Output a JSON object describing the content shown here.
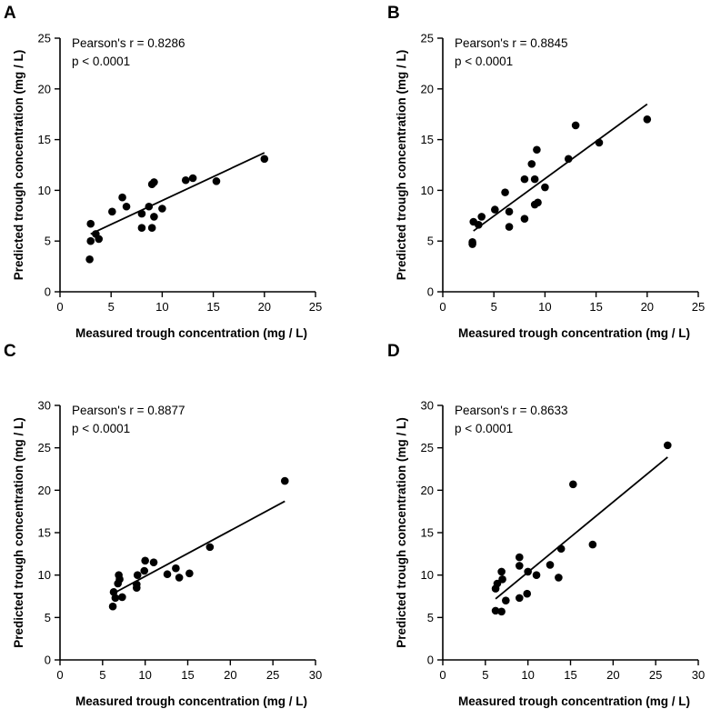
{
  "chart_data": [
    {
      "type": "scatter",
      "panel": "A",
      "xlabel": "Measured trough concentration (mg / L)",
      "ylabel": "Predicted trough concentration (mg / L)",
      "xlim": [
        0,
        25
      ],
      "ylim": [
        0,
        25
      ],
      "xticks": [
        0,
        5,
        10,
        15,
        20,
        25
      ],
      "yticks": [
        0,
        5,
        10,
        15,
        20,
        25
      ],
      "annotation": [
        "Pearson's r = 0.8286",
        "p < 0.0001"
      ],
      "points": [
        [
          2.9,
          3.2
        ],
        [
          3.0,
          5.0
        ],
        [
          3.0,
          6.7
        ],
        [
          3.5,
          5.7
        ],
        [
          3.8,
          5.2
        ],
        [
          5.1,
          7.9
        ],
        [
          6.1,
          9.3
        ],
        [
          6.5,
          8.4
        ],
        [
          8.0,
          6.3
        ],
        [
          8.0,
          7.7
        ],
        [
          8.7,
          8.4
        ],
        [
          9.0,
          6.3
        ],
        [
          9.2,
          7.4
        ],
        [
          9.0,
          10.6
        ],
        [
          9.2,
          10.8
        ],
        [
          10.0,
          8.2
        ],
        [
          12.3,
          11.0
        ],
        [
          13.0,
          11.2
        ],
        [
          15.3,
          10.9
        ],
        [
          20.0,
          13.1
        ]
      ],
      "fit": [
        [
          3.0,
          5.7
        ],
        [
          20.0,
          13.7
        ]
      ]
    },
    {
      "type": "scatter",
      "panel": "B",
      "xlabel": "Measured trough concentration (mg / L)",
      "ylabel": "Predicted trough concentration (mg / L)",
      "xlim": [
        0,
        25
      ],
      "ylim": [
        0,
        25
      ],
      "xticks": [
        0,
        5,
        10,
        15,
        20,
        25
      ],
      "yticks": [
        0,
        5,
        10,
        15,
        20,
        25
      ],
      "annotation": [
        "Pearson's r = 0.8845",
        "p < 0.0001"
      ],
      "points": [
        [
          2.9,
          4.7
        ],
        [
          2.9,
          4.9
        ],
        [
          3.0,
          6.9
        ],
        [
          3.5,
          6.6
        ],
        [
          3.8,
          7.4
        ],
        [
          5.1,
          8.1
        ],
        [
          6.1,
          9.8
        ],
        [
          6.5,
          6.4
        ],
        [
          6.5,
          7.9
        ],
        [
          8.0,
          7.2
        ],
        [
          8.0,
          11.1
        ],
        [
          8.7,
          12.6
        ],
        [
          9.0,
          8.6
        ],
        [
          9.0,
          11.1
        ],
        [
          9.2,
          14.0
        ],
        [
          9.3,
          8.8
        ],
        [
          10.0,
          10.3
        ],
        [
          12.3,
          13.1
        ],
        [
          13.0,
          16.4
        ],
        [
          15.3,
          14.7
        ],
        [
          20.0,
          17.0
        ]
      ],
      "fit": [
        [
          3.0,
          6.0
        ],
        [
          20.0,
          18.5
        ]
      ]
    },
    {
      "type": "scatter",
      "panel": "C",
      "xlabel": "Measured trough concentration (mg / L)",
      "ylabel": "Predicted trough concentration (mg / L)",
      "xlim": [
        0,
        30
      ],
      "ylim": [
        0,
        30
      ],
      "xticks": [
        0,
        5,
        10,
        15,
        20,
        25,
        30
      ],
      "yticks": [
        0,
        5,
        10,
        15,
        20,
        25,
        30
      ],
      "annotation": [
        "Pearson's r = 0.8877",
        "p < 0.0001"
      ],
      "points": [
        [
          6.2,
          6.3
        ],
        [
          6.3,
          8.0
        ],
        [
          6.5,
          7.3
        ],
        [
          6.8,
          9.0
        ],
        [
          6.9,
          10.0
        ],
        [
          7.3,
          7.4
        ],
        [
          7.0,
          9.5
        ],
        [
          9.0,
          8.5
        ],
        [
          9.0,
          8.9
        ],
        [
          9.1,
          10.0
        ],
        [
          9.9,
          10.5
        ],
        [
          10.0,
          11.7
        ],
        [
          11.0,
          11.5
        ],
        [
          12.6,
          10.1
        ],
        [
          13.6,
          10.8
        ],
        [
          14.0,
          9.7
        ],
        [
          15.2,
          10.2
        ],
        [
          17.6,
          13.3
        ],
        [
          26.4,
          21.1
        ]
      ],
      "fit": [
        [
          6.2,
          7.8
        ],
        [
          26.4,
          18.7
        ]
      ]
    },
    {
      "type": "scatter",
      "panel": "D",
      "xlabel": "Measured trough concentration (mg / L)",
      "ylabel": "Predicted trough concentration (mg / L)",
      "xlim": [
        0,
        30
      ],
      "ylim": [
        0,
        30
      ],
      "xticks": [
        0,
        5,
        10,
        15,
        20,
        25,
        30
      ],
      "yticks": [
        0,
        5,
        10,
        15,
        20,
        25,
        30
      ],
      "annotation": [
        "Pearson's r = 0.8633",
        "p < 0.0001"
      ],
      "points": [
        [
          6.2,
          5.8
        ],
        [
          6.2,
          8.4
        ],
        [
          6.4,
          9.0
        ],
        [
          6.9,
          5.7
        ],
        [
          6.9,
          10.4
        ],
        [
          7.0,
          9.5
        ],
        [
          7.4,
          7.0
        ],
        [
          9.0,
          7.3
        ],
        [
          9.0,
          12.1
        ],
        [
          9.0,
          11.1
        ],
        [
          9.9,
          7.8
        ],
        [
          10.0,
          10.4
        ],
        [
          11.0,
          10.0
        ],
        [
          12.6,
          11.2
        ],
        [
          13.6,
          9.7
        ],
        [
          13.9,
          13.1
        ],
        [
          15.3,
          20.7
        ],
        [
          17.6,
          13.6
        ],
        [
          26.4,
          25.3
        ]
      ],
      "fit": [
        [
          6.2,
          7.2
        ],
        [
          26.4,
          23.9
        ]
      ]
    }
  ]
}
